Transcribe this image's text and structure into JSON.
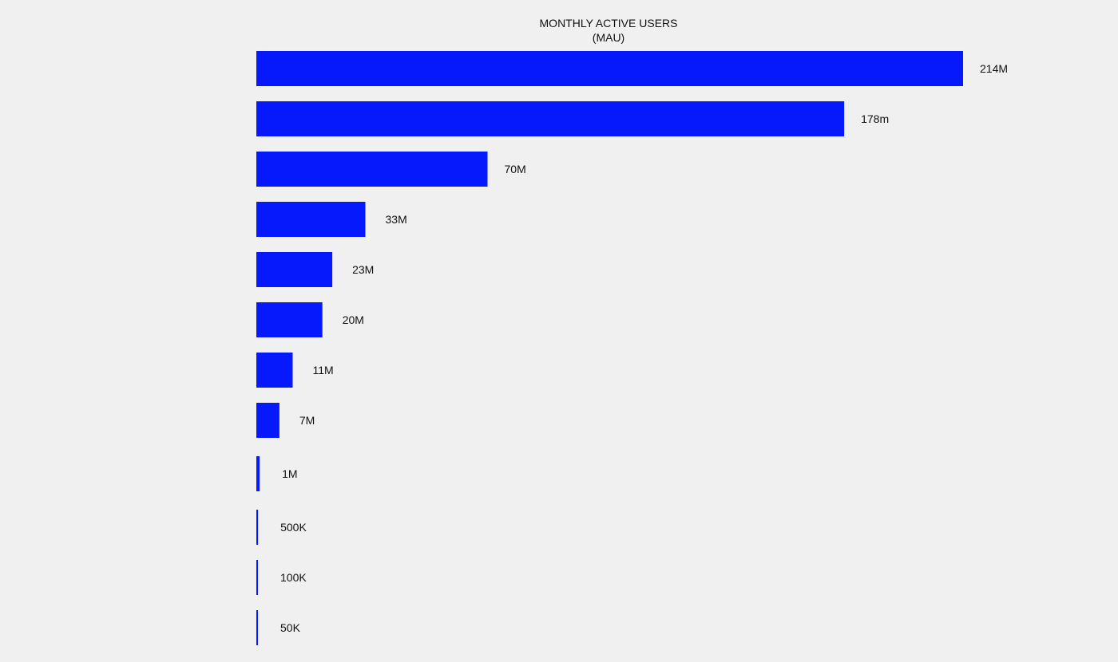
{
  "chart_data": {
    "type": "bar",
    "orientation": "horizontal",
    "title": "MONTHLY ACTIVE USERS",
    "subtitle": "(MAU)",
    "bar_color": "#0519fc",
    "background_color": "#f1f0f0",
    "value_labels": [
      "214M",
      "178m",
      "70M",
      "33M",
      "23M",
      "20M",
      "11M",
      "7M",
      "1M",
      "500K",
      "100K",
      "50K"
    ],
    "values": [
      214000000,
      178000000,
      70000000,
      33000000,
      23000000,
      20000000,
      11000000,
      7000000,
      1000000,
      500000,
      100000,
      50000
    ],
    "xlim": [
      0,
      214000000
    ],
    "grid": false,
    "legend": false
  }
}
